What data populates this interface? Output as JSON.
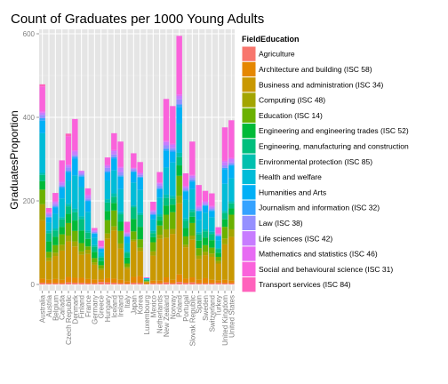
{
  "chart_data": {
    "type": "bar",
    "stacked": true,
    "title": "Count of Graduates per 1000 Young Adults",
    "xlabel": "",
    "ylabel": "GraduatesProportion",
    "ylim": [
      0,
      620
    ],
    "yticks": [
      0,
      200,
      400,
      600
    ],
    "grid": true,
    "legend_position": "right",
    "legend_title": "FieldEducation",
    "categories": [
      "Australia",
      "Austria",
      "Belgium",
      "Canada",
      "Czech Republic",
      "Denmark",
      "Finland",
      "France",
      "Germany",
      "Greece",
      "Hungary",
      "Iceland",
      "Ireland",
      "Italy",
      "Japan",
      "Korea",
      "Luxembourg",
      "Mexico",
      "Netherlands",
      "New Zealand",
      "Norway",
      "Poland",
      "Portugal",
      "Slovak Republic",
      "Spain",
      "Sweden",
      "Switzerland",
      "Turkey",
      "United Kingdom",
      "United States"
    ],
    "series": [
      {
        "name": "Agriculture",
        "color": "#F8766D",
        "values": [
          4,
          3,
          3,
          3,
          5,
          4,
          4,
          3,
          3,
          6,
          5,
          4,
          3,
          2,
          4,
          4,
          1,
          3,
          3,
          5,
          3,
          6,
          4,
          5,
          3,
          3,
          3,
          4,
          3,
          3
        ]
      },
      {
        "name": "Architecture and building (ISC 58)",
        "color": "#E58700",
        "values": [
          10,
          8,
          10,
          8,
          13,
          12,
          12,
          10,
          9,
          6,
          10,
          10,
          8,
          6,
          14,
          16,
          1,
          6,
          6,
          12,
          8,
          18,
          10,
          12,
          8,
          12,
          8,
          6,
          8,
          6
        ]
      },
      {
        "name": "Business and administration (ISC 34)",
        "color": "#C99800",
        "values": [
          140,
          45,
          55,
          70,
          85,
          75,
          55,
          60,
          35,
          22,
          95,
          115,
          75,
          30,
          85,
          60,
          4,
          60,
          100,
          95,
          110,
          170,
          75,
          90,
          50,
          55,
          55,
          40,
          85,
          105
        ]
      },
      {
        "name": "Computing (ISC 48)",
        "color": "#A3A500",
        "values": [
          38,
          8,
          8,
          14,
          14,
          12,
          8,
          10,
          6,
          4,
          12,
          10,
          12,
          4,
          4,
          8,
          1,
          10,
          10,
          20,
          12,
          18,
          6,
          10,
          8,
          8,
          8,
          6,
          14,
          18
        ]
      },
      {
        "name": "Education (ISC 14)",
        "color": "#6BB100",
        "values": [
          35,
          14,
          18,
          25,
          30,
          25,
          20,
          8,
          10,
          8,
          32,
          38,
          30,
          8,
          20,
          20,
          1,
          22,
          22,
          35,
          40,
          48,
          20,
          30,
          18,
          16,
          14,
          10,
          28,
          35
        ]
      },
      {
        "name": "Engineering and engineering trades (ISC 52)",
        "color": "#00BA38",
        "values": [
          20,
          25,
          20,
          18,
          22,
          25,
          30,
          18,
          15,
          10,
          22,
          18,
          22,
          14,
          30,
          30,
          2,
          12,
          12,
          22,
          18,
          25,
          20,
          15,
          18,
          18,
          18,
          10,
          18,
          15
        ]
      },
      {
        "name": "Engineering, manufacturing and construction",
        "color": "#00BF7D",
        "values": [
          15,
          20,
          15,
          18,
          18,
          20,
          28,
          15,
          12,
          8,
          20,
          15,
          18,
          12,
          28,
          28,
          1,
          10,
          10,
          18,
          15,
          20,
          18,
          12,
          15,
          15,
          15,
          8,
          15,
          12
        ]
      },
      {
        "name": "Environmental protection (ISC 85)",
        "color": "#00C0AF",
        "values": [
          5,
          5,
          5,
          5,
          6,
          8,
          6,
          5,
          4,
          3,
          8,
          8,
          5,
          3,
          4,
          5,
          1,
          5,
          5,
          8,
          6,
          10,
          5,
          6,
          5,
          5,
          5,
          3,
          5,
          5
        ]
      },
      {
        "name": "Health and welfare",
        "color": "#00BCD8",
        "values": [
          95,
          20,
          35,
          45,
          55,
          80,
          70,
          45,
          18,
          10,
          45,
          55,
          55,
          20,
          55,
          55,
          2,
          28,
          40,
          65,
          80,
          70,
          45,
          48,
          30,
          40,
          35,
          18,
          65,
          55
        ]
      },
      {
        "name": "Humanities and Arts",
        "color": "#00B0F6",
        "values": [
          30,
          12,
          15,
          25,
          20,
          40,
          25,
          25,
          10,
          8,
          18,
          28,
          30,
          15,
          25,
          30,
          1,
          10,
          20,
          40,
          25,
          40,
          20,
          18,
          20,
          16,
          15,
          10,
          35,
          30
        ]
      },
      {
        "name": "Journalism and information (ISC 32)",
        "color": "#35A2FF",
        "values": [
          6,
          2,
          3,
          3,
          4,
          5,
          3,
          2,
          1,
          1,
          4,
          4,
          3,
          1,
          2,
          2,
          0,
          2,
          3,
          5,
          4,
          6,
          2,
          3,
          2,
          2,
          2,
          1,
          3,
          3
        ]
      },
      {
        "name": "Law (ISC 38)",
        "color": "#9590FF",
        "values": [
          8,
          5,
          5,
          4,
          8,
          4,
          4,
          5,
          3,
          2,
          8,
          6,
          8,
          5,
          5,
          4,
          0,
          5,
          6,
          8,
          5,
          12,
          5,
          6,
          5,
          3,
          4,
          3,
          6,
          5
        ]
      },
      {
        "name": "Life sciences (ISC 42)",
        "color": "#C77CFF",
        "values": [
          5,
          4,
          5,
          6,
          5,
          8,
          5,
          6,
          3,
          2,
          5,
          8,
          10,
          3,
          2,
          4,
          0,
          3,
          5,
          8,
          8,
          8,
          4,
          5,
          4,
          4,
          4,
          2,
          8,
          8
        ]
      },
      {
        "name": "Mathematics and statistics (ISC 46)",
        "color": "#E76BF3",
        "values": [
          3,
          2,
          2,
          3,
          2,
          3,
          2,
          3,
          1,
          1,
          2,
          3,
          3,
          2,
          1,
          2,
          0,
          2,
          2,
          3,
          3,
          4,
          2,
          2,
          2,
          2,
          2,
          1,
          3,
          3
        ]
      },
      {
        "name": "Social and behavioural science (ISC 31)",
        "color": "#FA62DB",
        "values": [
          60,
          10,
          20,
          50,
          68,
          75,
          0,
          15,
          5,
          14,
          18,
          40,
          60,
          25,
          35,
          25,
          2,
          20,
          25,
          100,
          90,
          140,
          30,
          80,
          50,
          25,
          30,
          15,
          80,
          90
        ]
      },
      {
        "name": "Transport services (ISC 84)",
        "color": "#FF62BC",
        "values": [
          5,
          0,
          0,
          0,
          6,
          0,
          0,
          0,
          0,
          0,
          0,
          0,
          0,
          0,
          0,
          0,
          0,
          0,
          0,
          0,
          0,
          0,
          0,
          0,
          0,
          0,
          0,
          0,
          0,
          0
        ]
      }
    ]
  }
}
